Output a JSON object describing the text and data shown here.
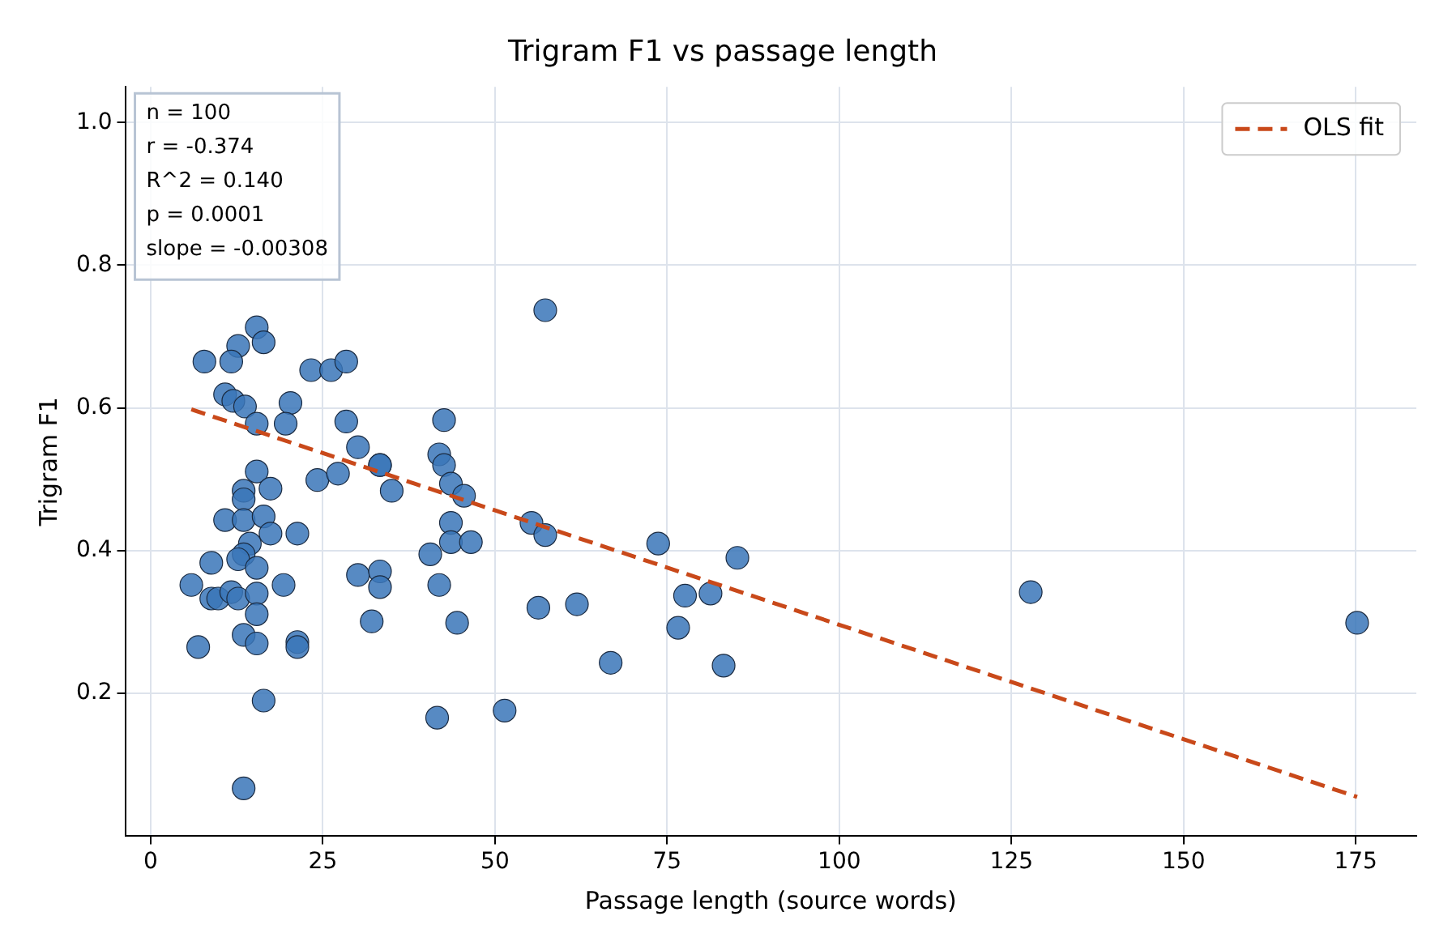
{
  "chart_data": {
    "type": "scatter",
    "title": "Trigram F1 vs passage length",
    "xlabel": "Passage length (source words)",
    "ylabel": "Trigram F1",
    "xlim": [
      -3.7,
      183.8
    ],
    "xticks": [
      0,
      25,
      50,
      75,
      100,
      125,
      150,
      175
    ],
    "ylim": [
      0.0,
      1.05
    ],
    "yticks": [
      0.2,
      0.4,
      0.6,
      0.8,
      {
        "value": 1,
        "label": "1.0"
      }
    ],
    "grid": true,
    "legend": "top right",
    "marker": "circle",
    "annotations": [
      "n = 100",
      "r = -0.374",
      "R^2 = 0.140",
      "p = 0.0001",
      "slope = -0.00308"
    ],
    "series": [
      {
        "type": "scatter",
        "color": "#3a75b8",
        "x": [
          15.4,
          12.7,
          16.4,
          7.8,
          11.7,
          23.3,
          26.2,
          28.4,
          10.8,
          12.0,
          13.7,
          20.3,
          15.4,
          19.6,
          28.4,
          42.6,
          30.1,
          33.3,
          33.3,
          35.0,
          24.2,
          27.2,
          15.4,
          13.5,
          13.5,
          17.4,
          10.8,
          13.5,
          16.4,
          17.4,
          21.3,
          14.4,
          13.5,
          8.8,
          12.7,
          15.4,
          5.9,
          8.8,
          9.8,
          11.7,
          12.7,
          15.4,
          19.3,
          15.4,
          13.5,
          15.4,
          21.3,
          21.3,
          6.9,
          16.4,
          13.5,
          30.1,
          33.3,
          33.3,
          32.1,
          41.9,
          42.6,
          43.6,
          43.6,
          43.6,
          40.6,
          41.9,
          41.6,
          44.5,
          57.3,
          45.5,
          46.5,
          51.4,
          55.3,
          57.3,
          56.3,
          61.9,
          66.8,
          73.7,
          77.6,
          81.3,
          76.6,
          83.2,
          85.2,
          127.8,
          175.2
        ],
        "values": [
          0.713,
          0.687,
          0.692,
          0.665,
          0.665,
          0.653,
          0.653,
          0.665,
          0.619,
          0.61,
          0.602,
          0.607,
          0.578,
          0.578,
          0.581,
          0.583,
          0.545,
          0.52,
          0.52,
          0.484,
          0.499,
          0.508,
          0.511,
          0.484,
          0.472,
          0.487,
          0.443,
          0.443,
          0.448,
          0.424,
          0.424,
          0.41,
          0.395,
          0.383,
          0.388,
          0.376,
          0.352,
          0.333,
          0.333,
          0.342,
          0.333,
          0.34,
          0.352,
          0.311,
          0.282,
          0.27,
          0.272,
          0.265,
          0.265,
          0.19,
          0.067,
          0.366,
          0.371,
          0.349,
          0.301,
          0.535,
          0.52,
          0.494,
          0.439,
          0.412,
          0.395,
          0.352,
          0.166,
          0.299,
          0.737,
          0.477,
          0.412,
          0.176,
          0.439,
          0.422,
          0.32,
          0.325,
          0.243,
          0.41,
          0.337,
          0.34,
          0.292,
          0.239,
          0.39,
          0.342,
          0.299
        ]
      },
      {
        "type": "line",
        "name": "OLS fit",
        "color": "#c9491a",
        "line_style": "dashed",
        "marker": "none",
        "x": [
          5.9,
          175.2
        ],
        "values": [
          0.598,
          0.055
        ]
      }
    ]
  }
}
